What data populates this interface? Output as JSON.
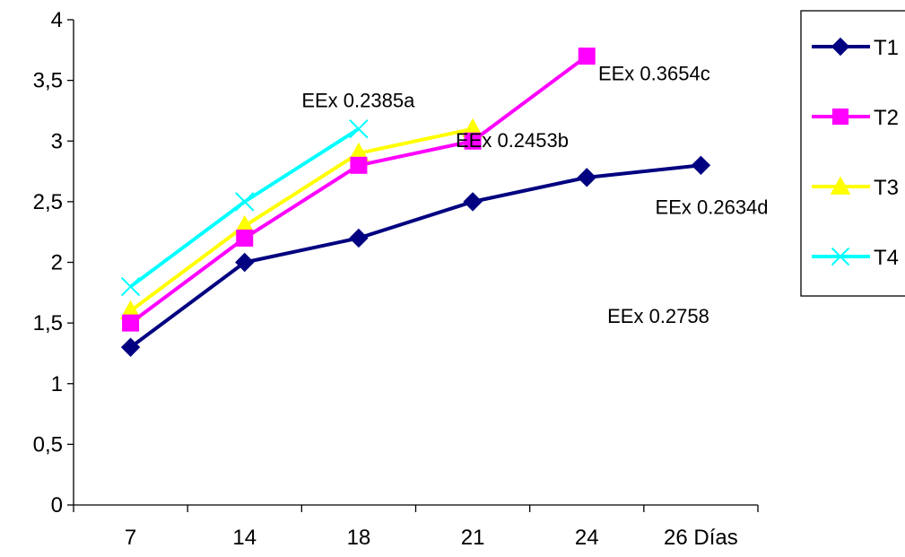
{
  "chart_data": {
    "type": "line",
    "categories": [
      "7",
      "14",
      "18",
      "21",
      "24",
      "26 Días"
    ],
    "ylim": [
      0,
      4
    ],
    "yticks": [
      0,
      0.5,
      1,
      1.5,
      2,
      2.5,
      3,
      3.5,
      4
    ],
    "ytick_labels": [
      "0",
      "0,5",
      "1",
      "1,5",
      "2",
      "2,5",
      "3",
      "3,5",
      "4"
    ],
    "grid": false,
    "legend_position": "right",
    "series": [
      {
        "name": "T1",
        "color": "#000080",
        "marker": "diamond",
        "values": [
          1.3,
          2.0,
          2.2,
          2.5,
          2.7,
          2.8
        ]
      },
      {
        "name": "T2",
        "color": "#ff00ff",
        "marker": "square",
        "values": [
          1.5,
          2.2,
          2.8,
          3.0,
          3.7,
          null
        ]
      },
      {
        "name": "T3",
        "color": "#ffff00",
        "marker": "triangle",
        "values": [
          1.6,
          2.3,
          2.9,
          3.1,
          null,
          null
        ]
      },
      {
        "name": "T4",
        "color": "#00ffff",
        "marker": "x",
        "values": [
          1.8,
          2.5,
          3.1,
          null,
          null,
          null
        ]
      }
    ],
    "annotations": [
      {
        "text": "EEx 0.2385a",
        "category": 2,
        "value": 3.28
      },
      {
        "text": "EEx 0.3654c",
        "category": 4.6,
        "value": 3.5
      },
      {
        "text": "EEx 0.2453b",
        "category": 3.35,
        "value": 2.95
      },
      {
        "text": "EEx 0.2634d",
        "category": 5.1,
        "value": 2.4
      },
      {
        "text": "EEx 0.2758",
        "category": 4.68,
        "value": 1.5
      }
    ]
  }
}
